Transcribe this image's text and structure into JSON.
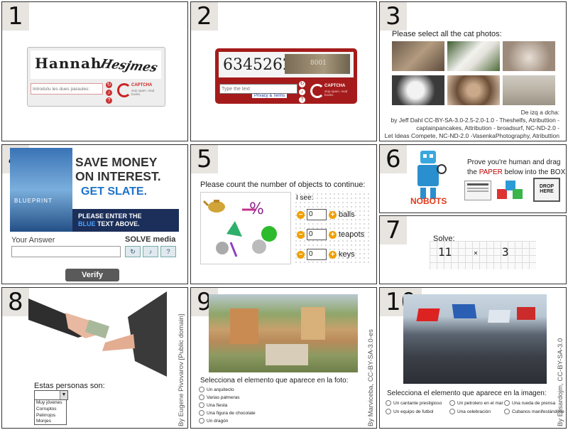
{
  "panels": [
    {
      "num": "1"
    },
    {
      "num": "2"
    },
    {
      "num": "3"
    },
    {
      "num": "4"
    },
    {
      "num": "5"
    },
    {
      "num": "6"
    },
    {
      "num": "7"
    },
    {
      "num": "8"
    },
    {
      "num": "9"
    },
    {
      "num": "10"
    }
  ],
  "p1": {
    "word1": "Hannah",
    "word2": "Hesjmes",
    "placeholder": "Introduïu les dues paraules:",
    "brand": "CAPTCHA",
    "sub": "stop spam. read books."
  },
  "p2": {
    "digits": "6345262",
    "photo_text": "8001",
    "placeholder": "Type the text",
    "privacy": "Privacy & Terms",
    "brand": "CAPTCHA",
    "sub": "stop spam. read books."
  },
  "p3": {
    "title": "Please select all the cat photos:",
    "caption": [
      "De izq a dcha:",
      "by Jeff Dahl CC-BY-SA-3.0-2.5-2.0-1.0 - Theshelfs, Atributtion -",
      "captainpancakes, Attribution - broadsurf, NC-ND-2.0 -",
      "Let Ideas Compete, NC-ND-2.0 -VasenkaPhotography, Atributtion"
    ]
  },
  "p4": {
    "ad_line1": "SAVE MONEY",
    "ad_line2": "ON INTEREST.",
    "ad_line3": "GET SLATE.",
    "ad_bar1": "PLEASE ENTER THE",
    "ad_bar2_blue": "BLUE",
    "ad_bar2_rest": " TEXT ABOVE.",
    "blueprint": "BLUEPRINT",
    "label": "Your Answer",
    "solve_media": "SOLVE media",
    "verify": "Verify"
  },
  "p5": {
    "title": "Please count the number of objects to continue:",
    "isee": "I see:",
    "rows": [
      {
        "value": "0",
        "label": "balls"
      },
      {
        "value": "0",
        "label": "teapots"
      },
      {
        "value": "0",
        "label": "keys"
      }
    ]
  },
  "p6": {
    "line1": "Prove you're human and drag",
    "line2_pre": "the ",
    "line2_red": "PAPER",
    "line2_post": " below into the BOX",
    "logo": "NOBOTS",
    "drop": "DROP HERE"
  },
  "p7": {
    "solve": "Solve:",
    "a": "11",
    "op": "×",
    "b": "3"
  },
  "p8": {
    "credit": "By Eugene Pivovarov [Public domain]",
    "label": "Estas personas son:",
    "options": [
      "Muy jóvenes",
      "Corruptos",
      "Pelirrojos",
      "Monjes"
    ]
  },
  "p9": {
    "credit": "By Marviceba, CC-BY-SA-3.0-es",
    "question": "Selecciona el elemento que aparece en la foto:",
    "options": [
      "Un arquitecto",
      "Varias palmeras",
      "Una fiesta",
      "Una figura de chocolate",
      "Un dragón"
    ]
  },
  "p10": {
    "credit": "By Elisardojm, CC-BY-SA-3.0",
    "question": "Selecciona el elemento que aparece en la imagen:",
    "options": [
      "Un cantante prestigioso",
      "Un petrolero en el mar",
      "Una rueda de prensa",
      "Un equipo de futbol",
      "Una celebración",
      "Cubanos manifestándose"
    ]
  }
}
